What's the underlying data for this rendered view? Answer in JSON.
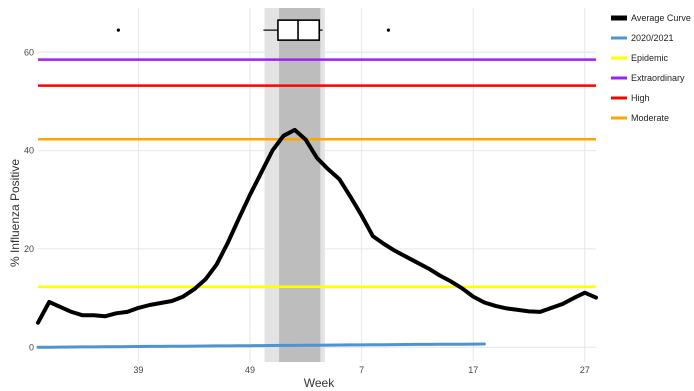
{
  "chart_data": {
    "type": "line",
    "xlabel": "Week",
    "ylabel": "% Influenza Positive",
    "ylim": [
      -3,
      69
    ],
    "grid": true,
    "legend_position": "right",
    "x_ticks": [
      "39",
      "49",
      "7",
      "17",
      "27"
    ],
    "y_ticks": [
      "0",
      "20",
      "40",
      "60"
    ],
    "y_tick_values": [
      0,
      20,
      40,
      60
    ],
    "season_weeks": [
      30,
      31,
      32,
      33,
      34,
      35,
      36,
      37,
      38,
      39,
      40,
      41,
      42,
      43,
      44,
      45,
      46,
      47,
      48,
      49,
      50,
      51,
      52,
      1,
      2,
      3,
      4,
      5,
      6,
      7,
      8,
      9,
      10,
      11,
      12,
      13,
      14,
      15,
      16,
      17,
      18,
      19,
      20,
      21,
      22,
      23,
      24,
      25,
      26,
      27,
      28
    ],
    "average_curve": [
      5.0,
      9.2,
      8.2,
      7.2,
      6.5,
      6.5,
      6.3,
      6.9,
      7.2,
      8.0,
      8.6,
      9.0,
      9.4,
      10.3,
      11.8,
      13.8,
      16.8,
      21.2,
      26.2,
      31.0,
      35.5,
      40.0,
      43.0,
      44.2,
      42.2,
      38.5,
      36.2,
      34.2,
      30.6,
      26.8,
      22.6,
      21.0,
      19.6,
      18.4,
      17.2,
      16.0,
      14.6,
      13.4,
      12.0,
      10.3,
      9.1,
      8.4,
      7.9,
      7.6,
      7.3,
      7.2,
      8.0,
      8.8,
      10.0,
      11.1,
      10.1
    ],
    "current_season": {
      "start_index": 0,
      "end_index": 40,
      "values": [
        0.0,
        0.02,
        0.03,
        0.05,
        0.07,
        0.08,
        0.1,
        0.12,
        0.13,
        0.15,
        0.17,
        0.18,
        0.2,
        0.22,
        0.23,
        0.25,
        0.27,
        0.28,
        0.3,
        0.32,
        0.33,
        0.35,
        0.37,
        0.38,
        0.4,
        0.42,
        0.43,
        0.45,
        0.47,
        0.48,
        0.5,
        0.52,
        0.53,
        0.55,
        0.57,
        0.58,
        0.6,
        0.62,
        0.63,
        0.65,
        0.67
      ]
    },
    "thresholds": [
      {
        "name": "Epidemic",
        "value": 12.3,
        "color": "#ffff00"
      },
      {
        "name": "Moderate",
        "value": 42.3,
        "color": "#ffa500"
      },
      {
        "name": "High",
        "value": 53.2,
        "color": "#ff0000"
      },
      {
        "name": "Extraordinary",
        "value": 58.5,
        "color": "#a020f0"
      }
    ],
    "peak_band": {
      "outer_start": 20.3,
      "outer_end": 25.7,
      "inner_start": 21.6,
      "inner_end": 25.3
    },
    "peak_boxplot": {
      "whisker_low": 20.2,
      "q1": 21.5,
      "median": 23.3,
      "q3": 25.2,
      "whisker_high": 25.5,
      "outliers": [
        7.2,
        31.4
      ],
      "y": 64.5
    },
    "series": [
      {
        "name": "Average Curve",
        "color": "#000000"
      },
      {
        "name": "2020/2021",
        "color": "#4f94cd"
      },
      {
        "name": "Epidemic",
        "color": "#ffff00"
      },
      {
        "name": "Extraordinary",
        "color": "#a020f0"
      },
      {
        "name": "High",
        "color": "#ff0000"
      },
      {
        "name": "Moderate",
        "color": "#ffa500"
      }
    ]
  }
}
